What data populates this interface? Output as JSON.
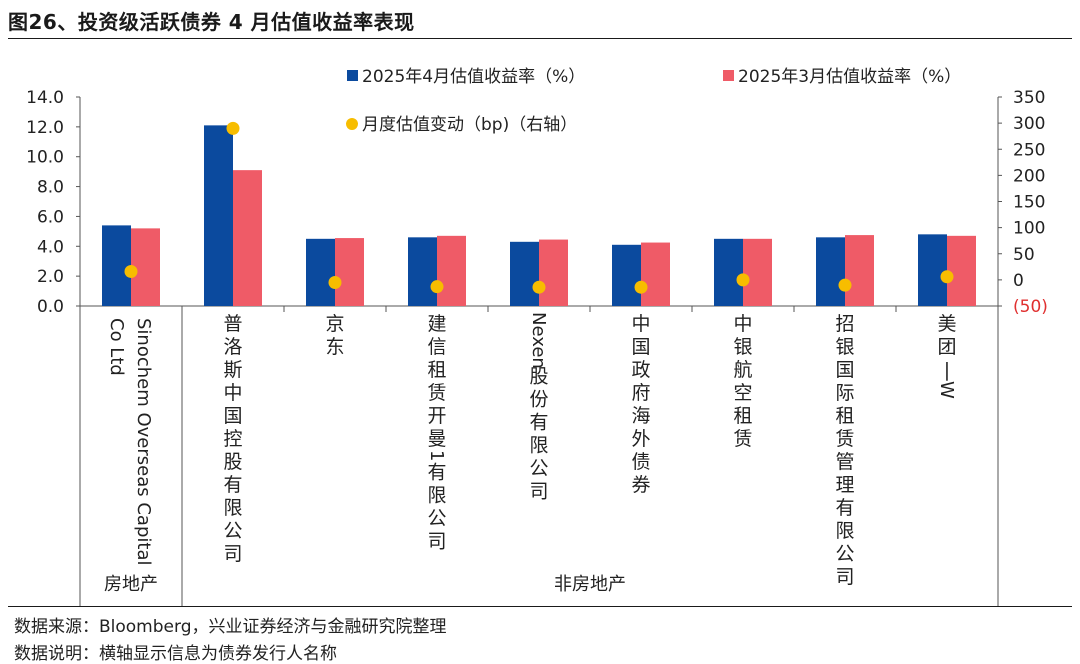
{
  "figure": {
    "title": "图26、投资级活跃债券 4 月估值收益率表现",
    "source": "数据来源：Bloomberg，兴业证券经济与金融研究院整理",
    "note": "数据说明：横轴显示信息为债券发行人名称"
  },
  "colors": {
    "apr": "#0b4a9e",
    "mar": "#ef5b67",
    "change": "#f7bd00",
    "negative_tick": "#e03030"
  },
  "chart_data": {
    "type": "bar",
    "categories": [
      "Sinochem Overseas Capital Co Ltd",
      "普洛斯中国控股有限公司",
      "京东",
      "建信租赁开曼1有限公司",
      "Nexen股份有限公司",
      "中国政府海外债券",
      "中银航空租赁",
      "招银国际租赁管理有限公司",
      "美团－W"
    ],
    "groups": [
      {
        "label": "房地产",
        "span": [
          0,
          0
        ]
      },
      {
        "label": "非房地产",
        "span": [
          1,
          8
        ]
      }
    ],
    "series": [
      {
        "name": "2025年4月估值收益率（%）",
        "axis": "left",
        "kind": "bar",
        "values": [
          5.4,
          12.1,
          4.5,
          4.6,
          4.3,
          4.1,
          4.5,
          4.6,
          4.8
        ]
      },
      {
        "name": "2025年3月估值收益率（%）",
        "axis": "left",
        "kind": "bar",
        "values": [
          5.2,
          9.1,
          4.55,
          4.7,
          4.45,
          4.25,
          4.5,
          4.75,
          4.7
        ]
      },
      {
        "name": "月度估值变动（bp)（右轴）",
        "axis": "right",
        "kind": "scatter",
        "values": [
          16,
          290,
          -5,
          -13,
          -14,
          -14,
          0,
          -10,
          6
        ]
      }
    ],
    "left_axis": {
      "min": 0,
      "max": 14,
      "step": 2,
      "ticks": [
        "0.0",
        "2.0",
        "4.0",
        "6.0",
        "8.0",
        "10.0",
        "12.0",
        "14.0"
      ]
    },
    "right_axis": {
      "min": -50,
      "max": 350,
      "step": 50,
      "ticks": [
        "(50)",
        "0",
        "50",
        "100",
        "150",
        "200",
        "250",
        "300",
        "350"
      ]
    },
    "legend_position": "top",
    "grid": false
  }
}
